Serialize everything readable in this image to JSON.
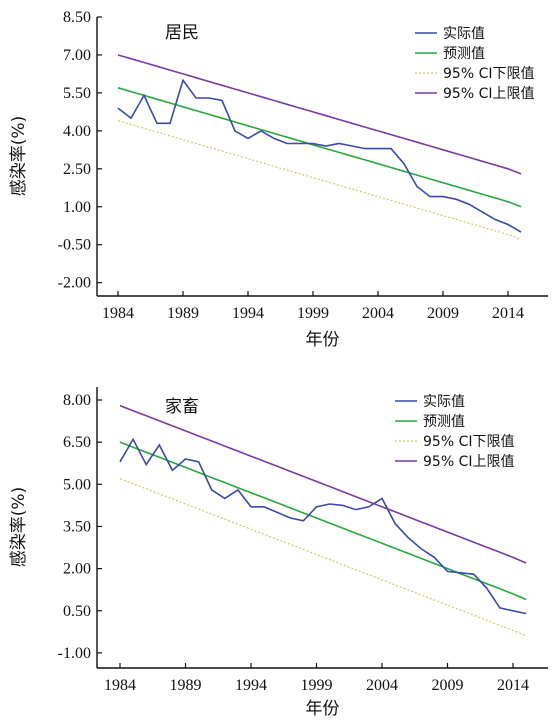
{
  "chart_data": [
    {
      "type": "line",
      "panel_label": "居民",
      "xlabel": "年份",
      "ylabel": "感染率(%)",
      "xlim": [
        1984,
        2015
      ],
      "ylim": [
        -2.0,
        8.5
      ],
      "xticks": [
        "1984",
        "1989",
        "1994",
        "1999",
        "2004",
        "2009",
        "2014"
      ],
      "yticks": [
        "8.50",
        "7.00",
        "5.50",
        "4.00",
        "2.50",
        "1.00",
        "-0.50",
        "-2.00"
      ],
      "grid": false,
      "legend_position": "top-right",
      "x": [
        1984,
        1985,
        1986,
        1987,
        1988,
        1989,
        1990,
        1991,
        1992,
        1993,
        1994,
        1995,
        1996,
        1997,
        1998,
        1999,
        2000,
        2001,
        2002,
        2003,
        2004,
        2005,
        2006,
        2007,
        2008,
        2009,
        2010,
        2011,
        2012,
        2013,
        2014,
        2015
      ],
      "series": [
        {
          "name": "实际值",
          "color": "#3a4aa6",
          "values": [
            4.9,
            4.5,
            5.4,
            4.3,
            4.3,
            6.0,
            5.3,
            5.3,
            5.2,
            4.0,
            3.7,
            4.0,
            3.7,
            3.5,
            3.5,
            3.5,
            3.4,
            3.5,
            3.4,
            3.3,
            3.3,
            3.3,
            2.7,
            1.8,
            1.4,
            1.4,
            1.3,
            1.1,
            0.8,
            0.5,
            0.3,
            0.0
          ]
        },
        {
          "name": "预测值",
          "color": "#2aa63c",
          "values": [
            5.7,
            5.55,
            5.4,
            5.25,
            5.1,
            4.95,
            4.8,
            4.65,
            4.5,
            4.35,
            4.2,
            4.05,
            3.9,
            3.75,
            3.6,
            3.45,
            3.3,
            3.15,
            3.0,
            2.85,
            2.7,
            2.55,
            2.4,
            2.25,
            2.1,
            1.95,
            1.8,
            1.65,
            1.5,
            1.35,
            1.2,
            1.0
          ]
        },
        {
          "name": "95% CI下限值",
          "color": "#d0c86a",
          "dashed": true,
          "values": [
            4.4,
            4.25,
            4.1,
            3.95,
            3.8,
            3.65,
            3.5,
            3.35,
            3.2,
            3.05,
            2.9,
            2.75,
            2.6,
            2.45,
            2.3,
            2.15,
            2.0,
            1.85,
            1.7,
            1.55,
            1.4,
            1.25,
            1.1,
            0.95,
            0.8,
            0.65,
            0.5,
            0.35,
            0.2,
            0.05,
            -0.1,
            -0.3
          ]
        },
        {
          "name": "95% CI上限值",
          "color": "#7a3aa0",
          "values": [
            7.0,
            6.85,
            6.7,
            6.55,
            6.4,
            6.25,
            6.1,
            5.95,
            5.8,
            5.65,
            5.5,
            5.35,
            5.2,
            5.05,
            4.9,
            4.75,
            4.6,
            4.45,
            4.3,
            4.15,
            4.0,
            3.85,
            3.7,
            3.55,
            3.4,
            3.25,
            3.1,
            2.95,
            2.8,
            2.65,
            2.5,
            2.3
          ]
        }
      ]
    },
    {
      "type": "line",
      "panel_label": "家畜",
      "xlabel": "年份",
      "ylabel": "感染率(%)",
      "xlim": [
        1984,
        2015
      ],
      "ylim": [
        -1.5,
        8.5
      ],
      "xticks": [
        "1984",
        "1989",
        "1994",
        "1999",
        "2004",
        "2009",
        "2014"
      ],
      "yticks": [
        "8.00",
        "6.50",
        "5.00",
        "3.50",
        "2.00",
        "0.50",
        "-1.00"
      ],
      "grid": false,
      "legend_position": "top-right",
      "x": [
        1984,
        1985,
        1986,
        1987,
        1988,
        1989,
        1990,
        1991,
        1992,
        1993,
        1994,
        1995,
        1996,
        1997,
        1998,
        1999,
        2000,
        2001,
        2002,
        2003,
        2004,
        2005,
        2006,
        2007,
        2008,
        2009,
        2010,
        2011,
        2012,
        2013,
        2014,
        2015
      ],
      "series": [
        {
          "name": "实际值",
          "color": "#3a4aa6",
          "values": [
            5.8,
            6.6,
            5.7,
            6.4,
            5.5,
            5.9,
            5.8,
            4.8,
            4.5,
            4.8,
            4.2,
            4.2,
            4.0,
            3.8,
            3.7,
            4.2,
            4.3,
            4.25,
            4.1,
            4.2,
            4.5,
            3.6,
            3.1,
            2.7,
            2.4,
            1.9,
            1.85,
            1.8,
            1.3,
            0.6,
            0.5,
            0.4
          ]
        },
        {
          "name": "预测值",
          "color": "#2aa63c",
          "values": [
            6.5,
            6.32,
            6.14,
            5.96,
            5.78,
            5.6,
            5.42,
            5.24,
            5.06,
            4.88,
            4.7,
            4.52,
            4.34,
            4.16,
            3.98,
            3.8,
            3.62,
            3.44,
            3.26,
            3.08,
            2.9,
            2.72,
            2.54,
            2.36,
            2.18,
            2.0,
            1.82,
            1.64,
            1.46,
            1.28,
            1.1,
            0.9
          ]
        },
        {
          "name": "95% CI下限值",
          "color": "#d0c86a",
          "dashed": true,
          "values": [
            5.2,
            5.02,
            4.84,
            4.66,
            4.48,
            4.3,
            4.12,
            3.94,
            3.76,
            3.58,
            3.4,
            3.22,
            3.04,
            2.86,
            2.68,
            2.5,
            2.32,
            2.14,
            1.96,
            1.78,
            1.6,
            1.42,
            1.24,
            1.06,
            0.88,
            0.7,
            0.52,
            0.34,
            0.16,
            -0.02,
            -0.2,
            -0.4
          ]
        },
        {
          "name": "95% CI上限值",
          "color": "#7a3aa0",
          "values": [
            7.8,
            7.62,
            7.44,
            7.26,
            7.08,
            6.9,
            6.72,
            6.54,
            6.36,
            6.18,
            6.0,
            5.82,
            5.64,
            5.46,
            5.28,
            5.1,
            4.92,
            4.74,
            4.56,
            4.38,
            4.2,
            4.02,
            3.84,
            3.66,
            3.48,
            3.3,
            3.12,
            2.94,
            2.76,
            2.58,
            2.4,
            2.2
          ]
        }
      ]
    }
  ]
}
